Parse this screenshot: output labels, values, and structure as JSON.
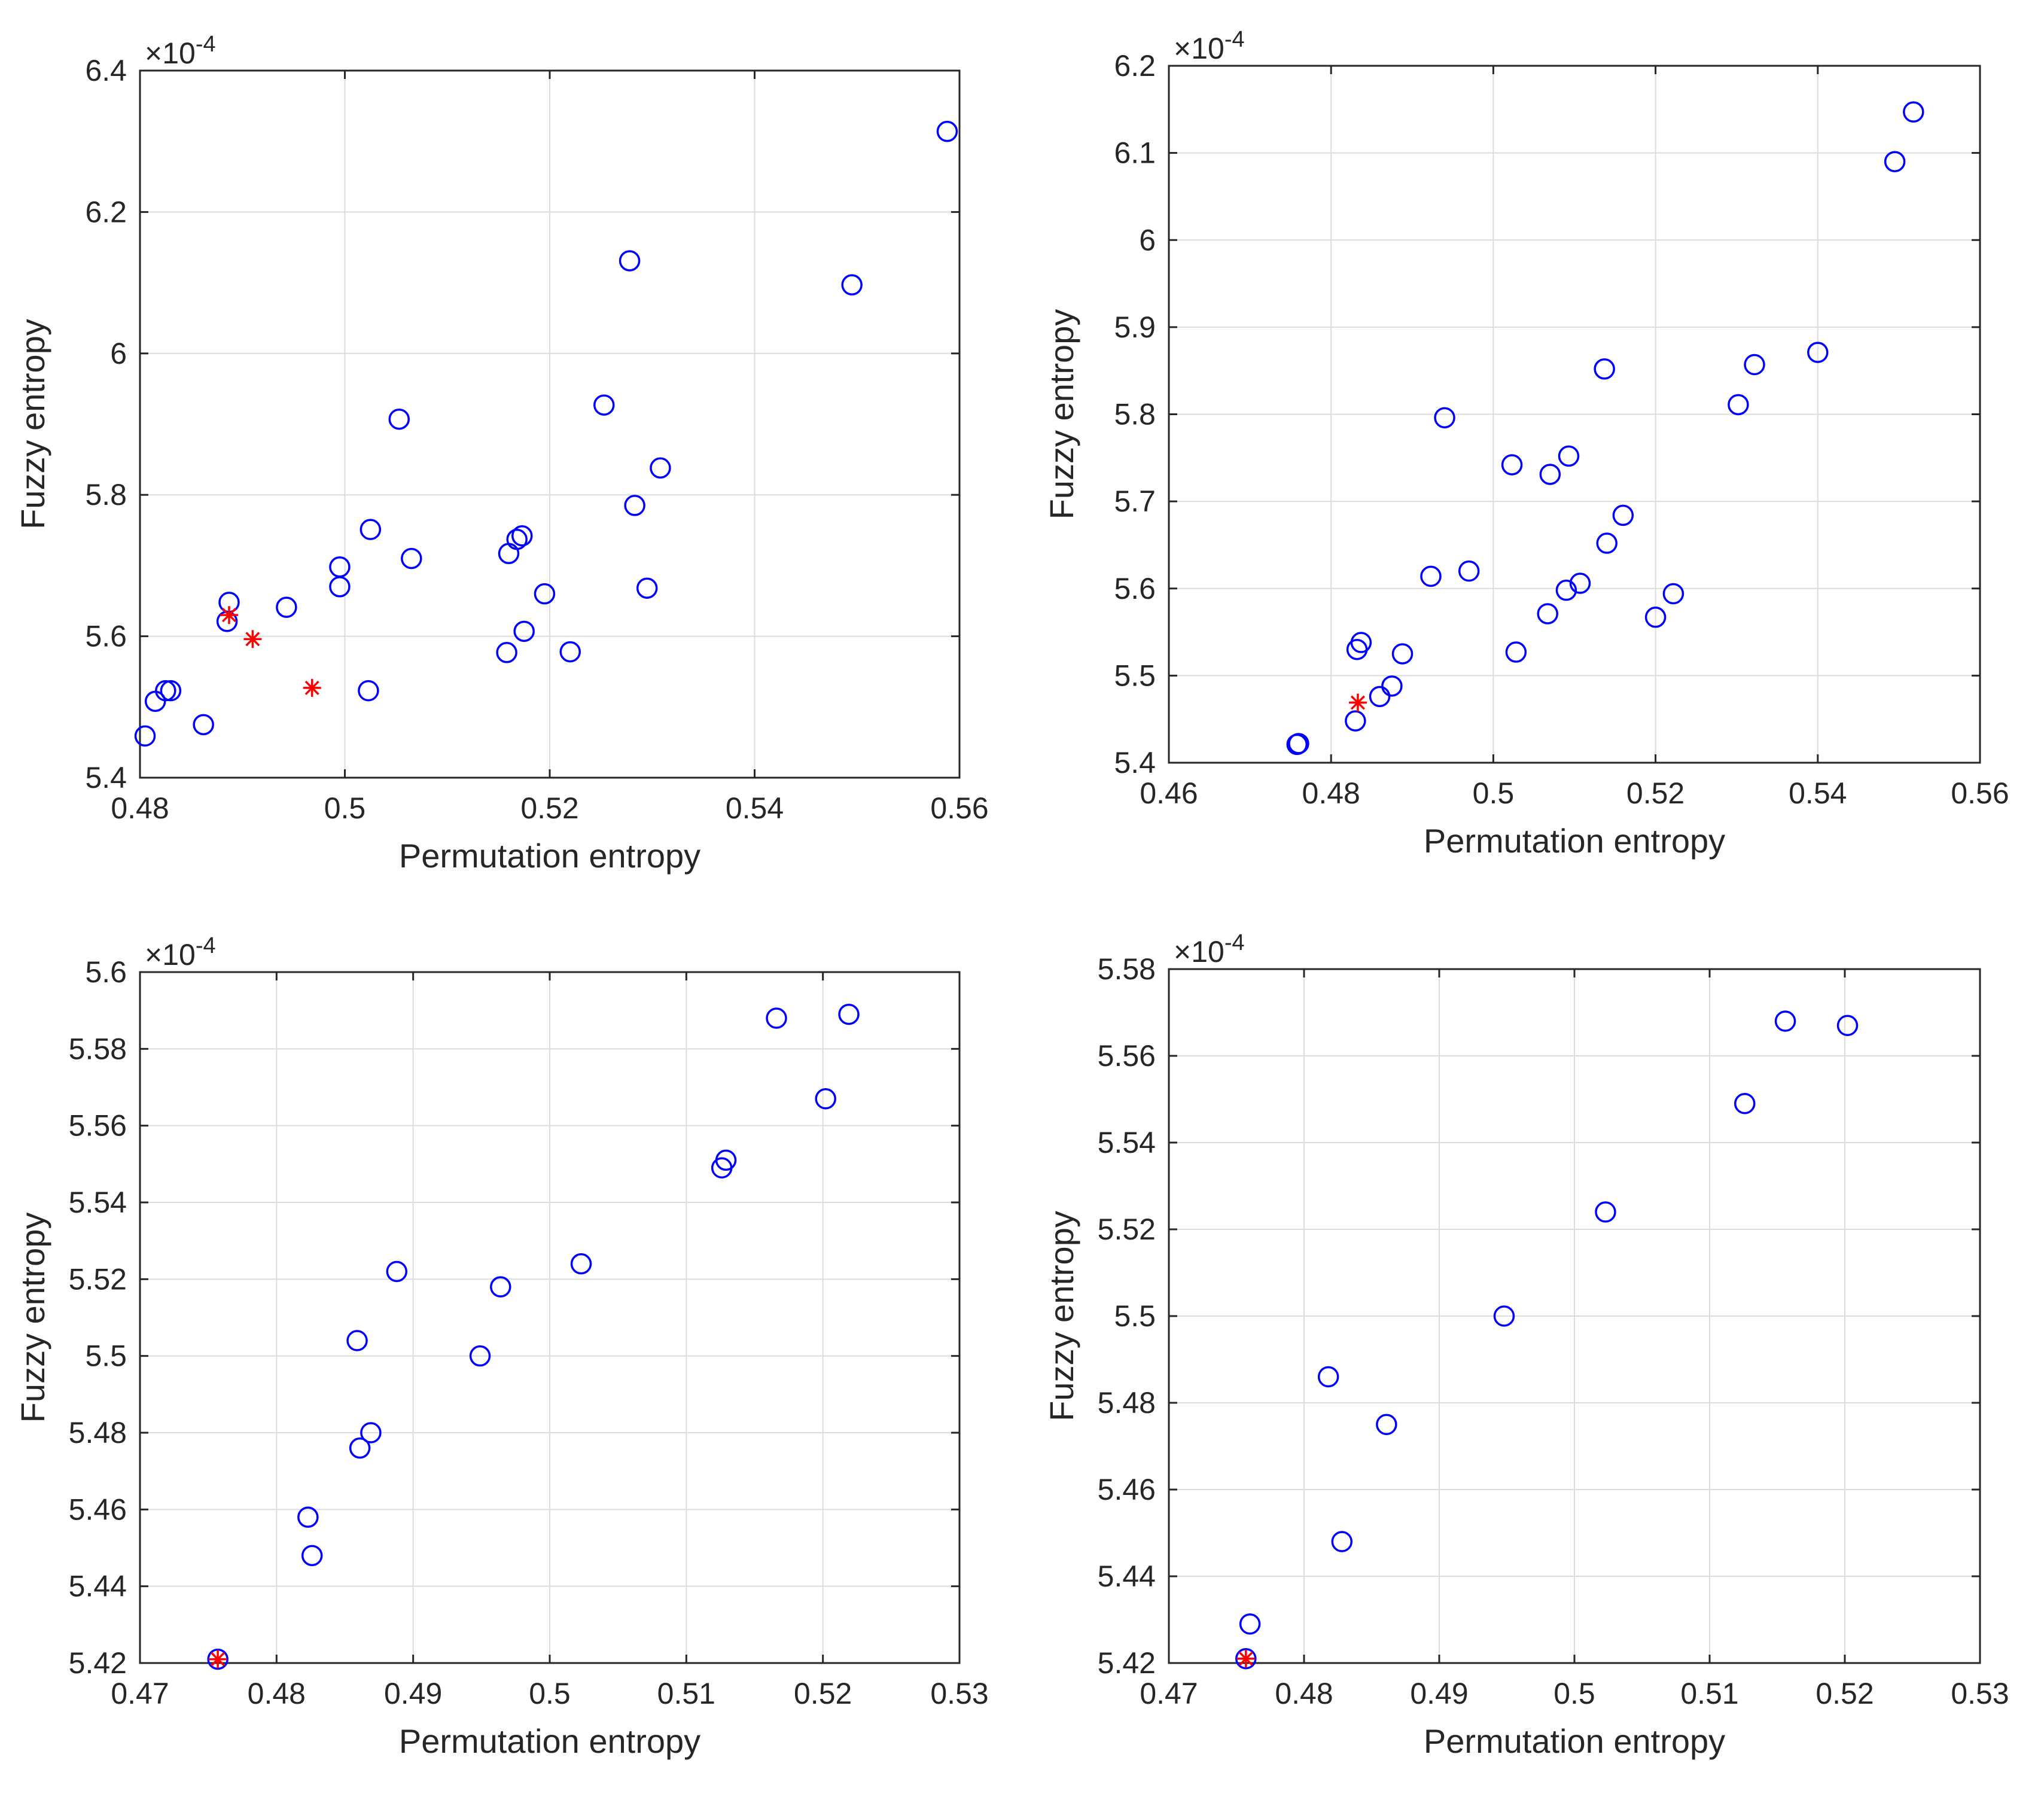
{
  "chart_data": [
    {
      "type": "scatter",
      "xlabel": "Permutation entropy",
      "ylabel": "Fuzzy entropy",
      "exponent_label": "×10",
      "exponent_power": "-4",
      "xlim": [
        0.48,
        0.56
      ],
      "ylim": [
        5.4,
        6.4
      ],
      "xticks": [
        0.48,
        0.5,
        0.52,
        0.54,
        0.56
      ],
      "xtick_labels": [
        "0.48",
        "0.5",
        "0.52",
        "0.54",
        "0.56"
      ],
      "yticks": [
        5.4,
        5.6,
        5.8,
        6.0,
        6.2,
        6.4
      ],
      "ytick_labels": [
        "5.4",
        "5.6",
        "5.8",
        "6",
        "6.2",
        "6.4"
      ],
      "grid": true,
      "series": [
        {
          "name": "circles",
          "marker": "o",
          "color": "#0000ff",
          "points": [
            [
              0.4805,
              5.459
            ],
            [
              0.4815,
              5.508
            ],
            [
              0.4825,
              5.523
            ],
            [
              0.483,
              5.523
            ],
            [
              0.4862,
              5.475
            ],
            [
              0.4885,
              5.621
            ],
            [
              0.4887,
              5.648
            ],
            [
              0.4943,
              5.641
            ],
            [
              0.4995,
              5.67
            ],
            [
              0.4995,
              5.698
            ],
            [
              0.5023,
              5.523
            ],
            [
              0.5025,
              5.751
            ],
            [
              0.5053,
              5.907
            ],
            [
              0.5065,
              5.71
            ],
            [
              0.5158,
              5.577
            ],
            [
              0.516,
              5.717
            ],
            [
              0.5168,
              5.737
            ],
            [
              0.5173,
              5.742
            ],
            [
              0.5175,
              5.607
            ],
            [
              0.5195,
              5.66
            ],
            [
              0.522,
              5.578
            ],
            [
              0.5253,
              5.927
            ],
            [
              0.5278,
              6.131
            ],
            [
              0.5283,
              5.785
            ],
            [
              0.5295,
              5.668
            ],
            [
              0.5308,
              5.838
            ],
            [
              0.5495,
              6.097
            ],
            [
              0.5588,
              6.314
            ]
          ]
        },
        {
          "name": "stars",
          "marker": "*",
          "color": "#ff0000",
          "points": [
            [
              0.4887,
              5.63
            ],
            [
              0.491,
              5.596
            ],
            [
              0.4968,
              5.527
            ]
          ]
        }
      ]
    },
    {
      "type": "scatter",
      "xlabel": "Permutation entropy",
      "ylabel": "Fuzzy entropy",
      "exponent_label": "×10",
      "exponent_power": "-4",
      "xlim": [
        0.46,
        0.56
      ],
      "ylim": [
        5.4,
        6.2
      ],
      "xticks": [
        0.46,
        0.48,
        0.5,
        0.52,
        0.54,
        0.56
      ],
      "xtick_labels": [
        "0.46",
        "0.48",
        "0.5",
        "0.52",
        "0.54",
        "0.56"
      ],
      "yticks": [
        5.4,
        5.5,
        5.6,
        5.7,
        5.8,
        5.9,
        6.0,
        6.1,
        6.2
      ],
      "ytick_labels": [
        "5.4",
        "5.5",
        "5.6",
        "5.7",
        "5.8",
        "5.9",
        "6",
        "6.1",
        "6.2"
      ],
      "grid": true,
      "series": [
        {
          "name": "circles",
          "marker": "o",
          "color": "#0000ff",
          "points": [
            [
              0.4758,
              5.421
            ],
            [
              0.476,
              5.422
            ],
            [
              0.483,
              5.448
            ],
            [
              0.4832,
              5.53
            ],
            [
              0.4837,
              5.538
            ],
            [
              0.486,
              5.476
            ],
            [
              0.4875,
              5.488
            ],
            [
              0.4888,
              5.525
            ],
            [
              0.4923,
              5.614
            ],
            [
              0.494,
              5.796
            ],
            [
              0.497,
              5.62
            ],
            [
              0.5023,
              5.742
            ],
            [
              0.5028,
              5.527
            ],
            [
              0.5067,
              5.571
            ],
            [
              0.507,
              5.731
            ],
            [
              0.509,
              5.598
            ],
            [
              0.5093,
              5.752
            ],
            [
              0.5107,
              5.606
            ],
            [
              0.5137,
              5.852
            ],
            [
              0.514,
              5.652
            ],
            [
              0.516,
              5.684
            ],
            [
              0.52,
              5.567
            ],
            [
              0.5222,
              5.594
            ],
            [
              0.5302,
              5.811
            ],
            [
              0.5322,
              5.857
            ],
            [
              0.54,
              5.871
            ],
            [
              0.5495,
              6.09
            ],
            [
              0.5518,
              6.147
            ]
          ]
        },
        {
          "name": "stars",
          "marker": "*",
          "color": "#ff0000",
          "points": [
            [
              0.4833,
              5.469
            ]
          ]
        }
      ]
    },
    {
      "type": "scatter",
      "xlabel": "Permutation entropy",
      "ylabel": "Fuzzy entropy",
      "exponent_label": "×10",
      "exponent_power": "-4",
      "xlim": [
        0.47,
        0.53
      ],
      "ylim": [
        5.42,
        5.6
      ],
      "xticks": [
        0.47,
        0.48,
        0.49,
        0.5,
        0.51,
        0.52,
        0.53
      ],
      "xtick_labels": [
        "0.47",
        "0.48",
        "0.49",
        "0.5",
        "0.51",
        "0.52",
        "0.53"
      ],
      "yticks": [
        5.42,
        5.44,
        5.46,
        5.48,
        5.5,
        5.52,
        5.54,
        5.56,
        5.58,
        5.6
      ],
      "ytick_labels": [
        "5.42",
        "5.44",
        "5.46",
        "5.48",
        "5.5",
        "5.52",
        "5.54",
        "5.56",
        "5.58",
        "5.6"
      ],
      "grid": true,
      "series": [
        {
          "name": "circles",
          "marker": "o",
          "color": "#0000ff",
          "points": [
            [
              0.4757,
              5.421
            ],
            [
              0.4823,
              5.458
            ],
            [
              0.4826,
              5.448
            ],
            [
              0.4859,
              5.504
            ],
            [
              0.4861,
              5.476
            ],
            [
              0.4869,
              5.48
            ],
            [
              0.4888,
              5.522
            ],
            [
              0.4949,
              5.5
            ],
            [
              0.4964,
              5.518
            ],
            [
              0.5023,
              5.524
            ],
            [
              0.5126,
              5.549
            ],
            [
              0.5129,
              5.551
            ],
            [
              0.5166,
              5.588
            ],
            [
              0.5202,
              5.567
            ],
            [
              0.5219,
              5.589
            ]
          ]
        },
        {
          "name": "stars",
          "marker": "*",
          "color": "#ff0000",
          "points": [
            [
              0.4757,
              5.421
            ]
          ]
        }
      ]
    },
    {
      "type": "scatter",
      "xlabel": "Permutation entropy",
      "ylabel": "Fuzzy entropy",
      "exponent_label": "×10",
      "exponent_power": "-4",
      "xlim": [
        0.47,
        0.53
      ],
      "ylim": [
        5.42,
        5.58
      ],
      "xticks": [
        0.47,
        0.48,
        0.49,
        0.5,
        0.51,
        0.52,
        0.53
      ],
      "xtick_labels": [
        "0.47",
        "0.48",
        "0.49",
        "0.5",
        "0.51",
        "0.52",
        "0.53"
      ],
      "yticks": [
        5.42,
        5.44,
        5.46,
        5.48,
        5.5,
        5.52,
        5.54,
        5.56,
        5.58
      ],
      "ytick_labels": [
        "5.42",
        "5.44",
        "5.46",
        "5.48",
        "5.5",
        "5.52",
        "5.54",
        "5.56",
        "5.58"
      ],
      "grid": true,
      "series": [
        {
          "name": "circles",
          "marker": "o",
          "color": "#0000ff",
          "points": [
            [
              0.4757,
              5.421
            ],
            [
              0.476,
              5.429
            ],
            [
              0.4818,
              5.486
            ],
            [
              0.4828,
              5.448
            ],
            [
              0.4861,
              5.475
            ],
            [
              0.4948,
              5.5
            ],
            [
              0.5023,
              5.524
            ],
            [
              0.5126,
              5.549
            ],
            [
              0.5156,
              5.568
            ],
            [
              0.5202,
              5.567
            ]
          ]
        },
        {
          "name": "stars",
          "marker": "*",
          "color": "#ff0000",
          "points": [
            [
              0.4757,
              5.421
            ]
          ]
        }
      ]
    }
  ]
}
